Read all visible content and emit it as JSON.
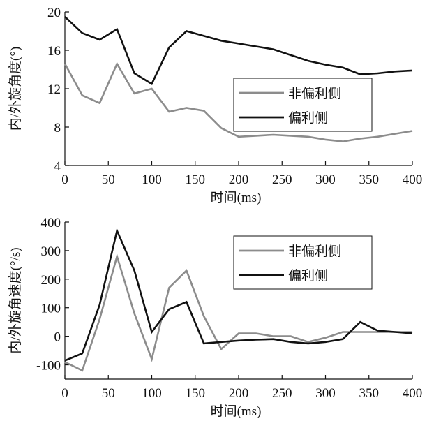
{
  "chart_data": [
    {
      "type": "line",
      "xlabel": "时间(ms)",
      "ylabel": "内/外旋角度(°)",
      "xlim": [
        0,
        400
      ],
      "ylim": [
        4,
        20
      ],
      "xticks": [
        0,
        50,
        100,
        150,
        200,
        250,
        300,
        350,
        400
      ],
      "yticks": [
        4,
        8,
        12,
        16,
        20
      ],
      "legend_position": "right",
      "grid": false,
      "series": [
        {
          "name": "非偏利侧",
          "color": "#8c8c8c",
          "x": [
            0,
            20,
            40,
            60,
            80,
            100,
            120,
            140,
            160,
            180,
            200,
            220,
            240,
            260,
            280,
            300,
            320,
            340,
            360,
            380,
            400
          ],
          "values": [
            14.6,
            11.3,
            10.5,
            14.6,
            11.5,
            12.0,
            9.6,
            10.0,
            9.7,
            7.9,
            7.0,
            7.1,
            7.2,
            7.1,
            7.0,
            6.7,
            6.5,
            6.8,
            7.0,
            7.3,
            7.6
          ]
        },
        {
          "name": "偏利侧",
          "color": "#111111",
          "x": [
            0,
            20,
            40,
            60,
            80,
            100,
            120,
            140,
            160,
            180,
            200,
            220,
            240,
            260,
            280,
            300,
            320,
            340,
            360,
            380,
            400
          ],
          "values": [
            19.5,
            17.8,
            17.1,
            18.2,
            13.6,
            12.5,
            16.3,
            18.0,
            17.5,
            17.0,
            16.7,
            16.4,
            16.1,
            15.5,
            14.9,
            14.5,
            14.2,
            13.5,
            13.6,
            13.8,
            13.9
          ]
        }
      ]
    },
    {
      "type": "line",
      "xlabel": "时间(ms)",
      "ylabel": "内/外旋角速度(°/s)",
      "xlim": [
        0,
        400
      ],
      "ylim": [
        -150,
        400
      ],
      "xticks": [
        0,
        50,
        100,
        150,
        200,
        250,
        300,
        350,
        400
      ],
      "yticks": [
        -100,
        0,
        100,
        200,
        300,
        400
      ],
      "legend_position": "top-right",
      "grid": false,
      "series": [
        {
          "name": "非偏利侧",
          "color": "#8c8c8c",
          "x": [
            0,
            20,
            40,
            60,
            80,
            100,
            120,
            140,
            160,
            180,
            200,
            220,
            240,
            260,
            280,
            300,
            320,
            340,
            360,
            380,
            400
          ],
          "values": [
            -90,
            -120,
            60,
            280,
            80,
            -80,
            170,
            230,
            70,
            -45,
            10,
            10,
            0,
            0,
            -20,
            -5,
            15,
            15,
            15,
            15,
            15
          ]
        },
        {
          "name": "偏利侧",
          "color": "#111111",
          "x": [
            0,
            20,
            40,
            60,
            80,
            100,
            120,
            140,
            160,
            180,
            200,
            220,
            240,
            260,
            280,
            300,
            320,
            340,
            360,
            380,
            400
          ],
          "values": [
            -85,
            -60,
            110,
            370,
            230,
            15,
            95,
            120,
            -25,
            -20,
            -15,
            -12,
            -10,
            -20,
            -25,
            -20,
            -10,
            50,
            20,
            15,
            10
          ]
        }
      ]
    }
  ]
}
